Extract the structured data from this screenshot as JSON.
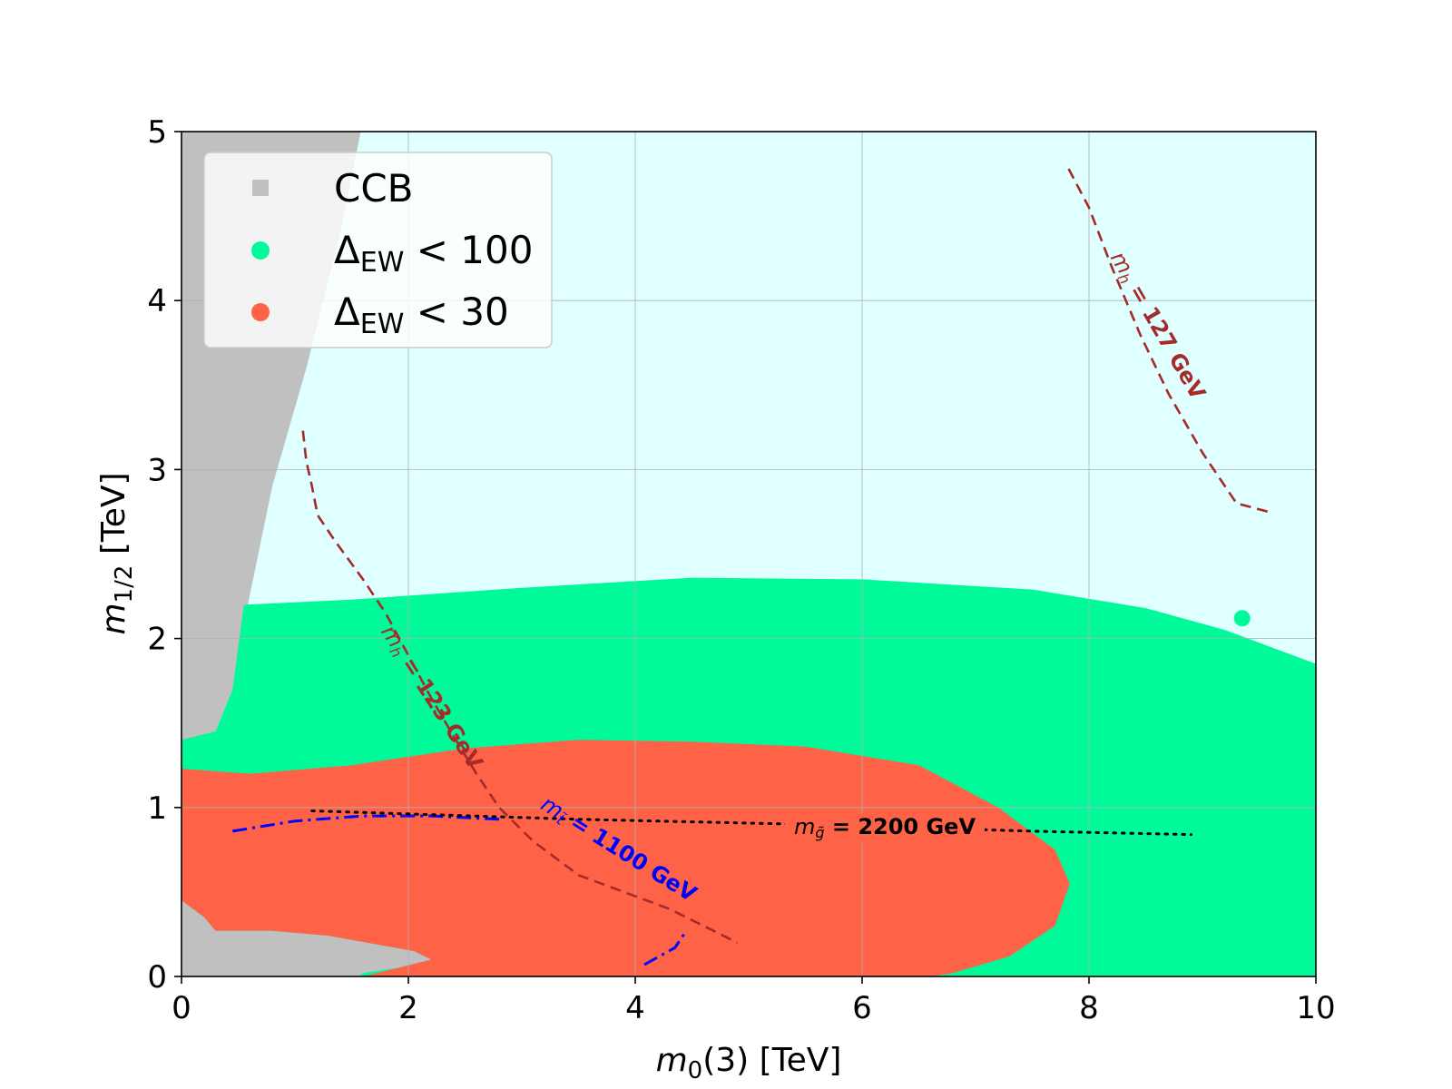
{
  "chart_data": {
    "type": "region-scan",
    "xlabel_var": "m",
    "xlabel_sub": "0",
    "xlabel_rest": "(3) [TeV]",
    "ylabel_var": "m",
    "ylabel_sub": "1/2",
    "ylabel_rest": " [TeV]",
    "xlim": [
      0,
      10
    ],
    "ylim": [
      0,
      5
    ],
    "x_ticks": [
      0,
      2,
      4,
      6,
      8,
      10
    ],
    "y_ticks": [
      0,
      1,
      2,
      3,
      4,
      5
    ],
    "grid": true,
    "colors": {
      "background": "#e0ffff",
      "ccb": "#c0c0c0",
      "ew100": "#00fa9a",
      "ew30": "#ff6347",
      "mh": "#a52a2a",
      "mstop": "#0000ff",
      "mgluino": "#000000"
    },
    "legend": {
      "position": "upper-left",
      "entries": [
        {
          "text": "CCB",
          "marker": "square",
          "color_key": "ccb"
        },
        {
          "sym": "Δ",
          "sub": "EW",
          "rest": " < 100",
          "marker": "circle",
          "color_key": "ew100"
        },
        {
          "sym": "Δ",
          "sub": "EW",
          "rest": " < 30",
          "marker": "circle",
          "color_key": "ew30"
        }
      ]
    },
    "regions": {
      "ccb_upper": [
        [
          0,
          5
        ],
        [
          1.58,
          5
        ],
        [
          1.4,
          4.4
        ],
        [
          1.1,
          3.6
        ],
        [
          0.8,
          2.9
        ],
        [
          0.6,
          2.25
        ],
        [
          0.45,
          1.7
        ],
        [
          0.3,
          1.45
        ],
        [
          0.15,
          1.42
        ],
        [
          0,
          1.4
        ]
      ],
      "ccb_lower": [
        [
          0,
          0.45
        ],
        [
          0.2,
          0.35
        ],
        [
          0.3,
          0.27
        ],
        [
          0.8,
          0.27
        ],
        [
          1.3,
          0.24
        ],
        [
          2.05,
          0.15
        ],
        [
          2.2,
          0.1
        ],
        [
          1.9,
          0.05
        ],
        [
          1.6,
          0.02
        ],
        [
          1.57,
          0
        ],
        [
          0,
          0
        ]
      ],
      "ew100": [
        [
          0,
          1.4
        ],
        [
          0.3,
          1.45
        ],
        [
          0.45,
          1.7
        ],
        [
          0.55,
          2.2
        ],
        [
          1.5,
          2.23
        ],
        [
          3,
          2.3
        ],
        [
          4.5,
          2.36
        ],
        [
          6,
          2.35
        ],
        [
          7.5,
          2.29
        ],
        [
          8.5,
          2.18
        ],
        [
          9.2,
          2.05
        ],
        [
          10,
          1.85
        ],
        [
          10,
          0
        ],
        [
          0,
          0
        ]
      ],
      "ew30": [
        [
          0,
          1.23
        ],
        [
          0.6,
          1.2
        ],
        [
          1.5,
          1.25
        ],
        [
          2.5,
          1.35
        ],
        [
          3.5,
          1.4
        ],
        [
          4.5,
          1.39
        ],
        [
          5.5,
          1.36
        ],
        [
          6.5,
          1.25
        ],
        [
          7.2,
          1.0
        ],
        [
          7.7,
          0.75
        ],
        [
          7.83,
          0.55
        ],
        [
          7.7,
          0.3
        ],
        [
          7.3,
          0.12
        ],
        [
          6.8,
          0.02
        ],
        [
          6.6,
          0
        ],
        [
          1.6,
          0
        ],
        [
          1.9,
          0.05
        ],
        [
          2.2,
          0.1
        ],
        [
          2.05,
          0.15
        ],
        [
          1.3,
          0.24
        ],
        [
          0.8,
          0.27
        ],
        [
          0.3,
          0.27
        ],
        [
          0.2,
          0.35
        ],
        [
          0,
          0.45
        ]
      ]
    },
    "point": {
      "x": 9.35,
      "y": 2.12,
      "color_key": "ew100"
    },
    "contours": [
      {
        "name": "mh_123",
        "style": "dashed",
        "color_key": "mh",
        "points": [
          [
            1.07,
            3.23
          ],
          [
            1.1,
            3.05
          ],
          [
            1.15,
            2.9
          ],
          [
            1.2,
            2.73
          ],
          [
            1.35,
            2.58
          ],
          [
            1.6,
            2.35
          ],
          [
            1.8,
            2.15
          ],
          [
            2.0,
            1.9
          ],
          [
            2.2,
            1.65
          ],
          [
            2.4,
            1.42
          ],
          [
            2.6,
            1.2
          ],
          [
            2.8,
            1.0
          ],
          [
            3.1,
            0.8
          ],
          [
            3.5,
            0.6
          ],
          [
            3.9,
            0.5
          ],
          [
            4.3,
            0.4
          ],
          [
            4.6,
            0.3
          ],
          [
            4.9,
            0.2
          ]
        ],
        "label_var": "m",
        "label_sub": "h",
        "label_rest": " = 123 GeV",
        "label_at": [
          2.2,
          1.65
        ],
        "label_angle": 57
      },
      {
        "name": "mh_127",
        "style": "dashed",
        "color_key": "mh",
        "points": [
          [
            7.82,
            4.78
          ],
          [
            8.0,
            4.55
          ],
          [
            8.2,
            4.2
          ],
          [
            8.45,
            3.8
          ],
          [
            8.7,
            3.45
          ],
          [
            9.0,
            3.1
          ],
          [
            9.3,
            2.8
          ],
          [
            9.58,
            2.75
          ]
        ],
        "label_var": "m",
        "label_sub": "h",
        "label_rest": " = 127 GeV",
        "label_at": [
          8.6,
          3.85
        ],
        "label_angle": 60
      },
      {
        "name": "mstop",
        "style": "dashdot",
        "color_key": "mstop",
        "points": [
          [
            0.45,
            0.86
          ],
          [
            1.0,
            0.92
          ],
          [
            1.6,
            0.95
          ],
          [
            2.2,
            0.95
          ],
          [
            2.8,
            0.93
          ]
        ],
        "label_var": "m",
        "label_sub": "t̃",
        "label_rest": " = 1100 GeV",
        "label_at": [
          3.85,
          0.75
        ],
        "label_angle": 32
      },
      {
        "name": "mstop_tail",
        "style": "dashdot",
        "color_key": "mstop",
        "points": [
          [
            4.08,
            0.07
          ],
          [
            4.35,
            0.17
          ],
          [
            4.45,
            0.27
          ]
        ]
      },
      {
        "name": "mgluino",
        "style": "dotted",
        "color_key": "mgluino",
        "points": [
          [
            1.15,
            0.98
          ],
          [
            3.5,
            0.93
          ],
          [
            5.5,
            0.9
          ],
          [
            7.5,
            0.86
          ],
          [
            8.9,
            0.84
          ]
        ],
        "label_var": "m",
        "label_sub": "g̃",
        "label_rest": " = 2200 GeV",
        "label_at": [
          6.2,
          0.88
        ],
        "label_angle": 0
      }
    ]
  }
}
